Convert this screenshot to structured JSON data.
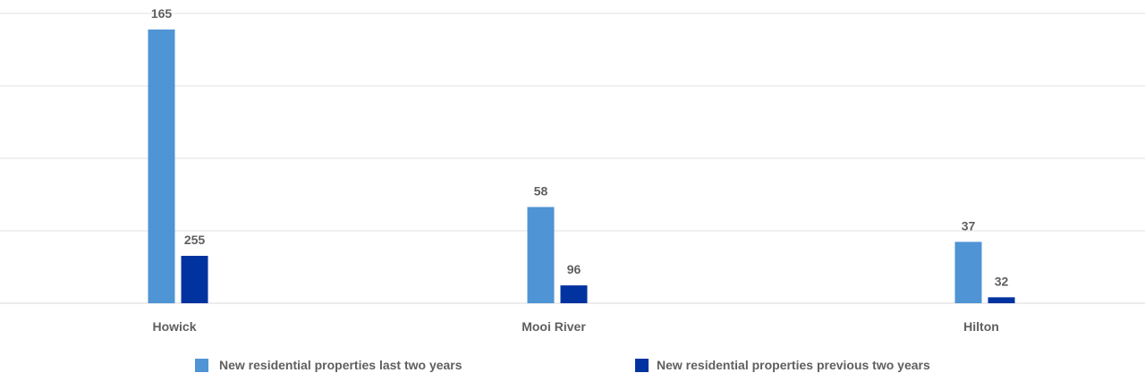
{
  "chart_data": {
    "type": "bar",
    "categories": [
      "Howick",
      "Mooi River",
      "Hilton"
    ],
    "series": [
      {
        "name": "New residential properties last two years",
        "color": "#4f94d4",
        "values": [
          165,
          58,
          37
        ],
        "value_labels": [
          "165",
          "58",
          "37"
        ]
      },
      {
        "name": "New residential properties previous two years",
        "color": "#0033a0",
        "values": [
          255,
          96,
          32
        ],
        "value_labels": [
          "255",
          "96",
          "32"
        ]
      }
    ],
    "title": "",
    "xlabel": "",
    "ylabel": "",
    "grid": true,
    "legend_position": "bottom"
  }
}
